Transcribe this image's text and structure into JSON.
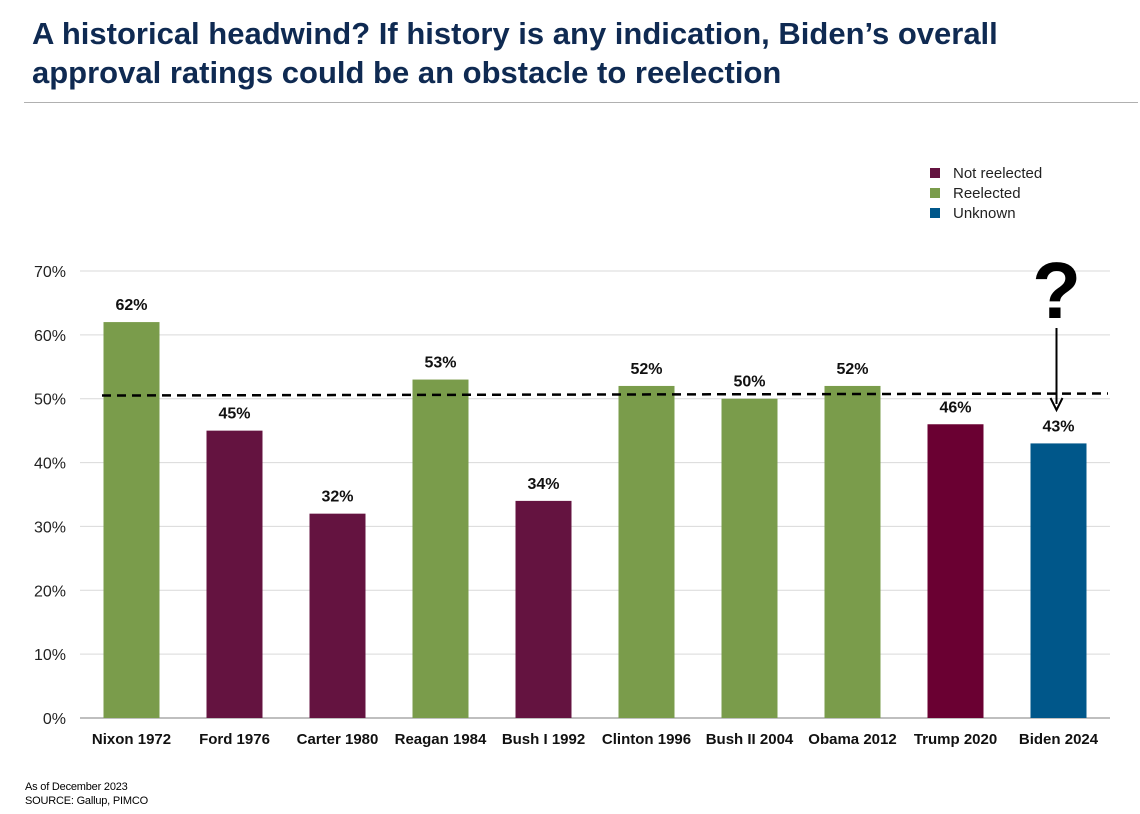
{
  "title": "A historical headwind?  If history is any indication, Biden’s overall approval ratings could be an obstacle to reelection",
  "legend": [
    {
      "label": "Not reelected",
      "color": "#641340"
    },
    {
      "label": "Reelected",
      "color": "#7a9c4b"
    },
    {
      "label": "Unknown",
      "color": "#00578a"
    }
  ],
  "annotation": {
    "question_mark": "?"
  },
  "footer": {
    "as_of": "As of December 2023",
    "source": "SOURCE: Gallup, PIMCO"
  },
  "chart_data": {
    "type": "bar",
    "categories": [
      "Nixon 1972",
      "Ford 1976",
      "Carter 1980",
      "Reagan 1984",
      "Bush I 1992",
      "Clinton 1996",
      "Bush II 2004",
      "Obama 2012",
      "Trump 2020",
      "Biden 2024"
    ],
    "values": [
      62,
      45,
      32,
      53,
      34,
      52,
      50,
      52,
      46,
      43
    ],
    "value_labels": [
      "62%",
      "45%",
      "32%",
      "53%",
      "34%",
      "52%",
      "50%",
      "52%",
      "46%",
      "43%"
    ],
    "status": [
      "Reelected",
      "Not reelected",
      "Not reelected",
      "Reelected",
      "Not reelected",
      "Reelected",
      "Reelected",
      "Reelected",
      "Not reelected",
      "Unknown"
    ],
    "bar_colors": [
      "#7a9c4b",
      "#641340",
      "#641340",
      "#7a9c4b",
      "#641340",
      "#7a9c4b",
      "#7a9c4b",
      "#7a9c4b",
      "#6a0032",
      "#00578a"
    ],
    "ylim": [
      0,
      70
    ],
    "yticks": [
      0,
      10,
      20,
      30,
      40,
      50,
      60,
      70
    ],
    "ytick_labels": [
      "0%",
      "10%",
      "20%",
      "30%",
      "40%",
      "50%",
      "60%",
      "70%"
    ],
    "reference_line": {
      "value": 50.5,
      "style": "dashed",
      "color": "#000000"
    },
    "grid": true,
    "xlabel": "",
    "ylabel": "",
    "legend_position": "top-right"
  }
}
